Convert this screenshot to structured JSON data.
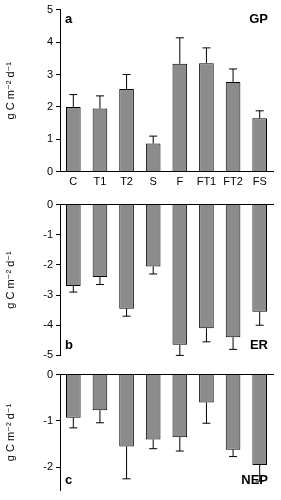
{
  "chart_data": [
    {
      "type": "bar",
      "title": "GP",
      "panel_label": "a",
      "y_label": "g C m⁻² d⁻¹",
      "categories": [
        "C",
        "T1",
        "T2",
        "S",
        "F",
        "FT1",
        "FT2",
        "FS"
      ],
      "values": [
        2.0,
        1.95,
        2.55,
        0.87,
        3.33,
        3.35,
        2.77,
        1.65
      ],
      "errors": [
        0.38,
        0.39,
        0.45,
        0.23,
        0.8,
        0.47,
        0.4,
        0.23
      ],
      "color": "#8c8c8c",
      "ylim": [
        0,
        5
      ],
      "yticks": [
        0,
        1,
        2,
        3,
        4,
        5
      ],
      "grid": false
    },
    {
      "type": "bar",
      "title": "ER",
      "panel_label": "b",
      "y_label": "g C m⁻² d⁻¹",
      "categories": [
        "C",
        "T1",
        "T2",
        "S",
        "F",
        "FT1",
        "FT2",
        "FS"
      ],
      "values": [
        -2.7,
        -2.4,
        -3.45,
        -2.05,
        -4.65,
        -4.1,
        -4.4,
        -3.55
      ],
      "errors": [
        0.2,
        0.25,
        0.25,
        0.25,
        0.35,
        0.45,
        0.4,
        0.45
      ],
      "color": "#8c8c8c",
      "ylim": [
        -5,
        0
      ],
      "yticks": [
        -5,
        -4,
        -3,
        -2,
        -1,
        0
      ],
      "grid": false,
      "tick_labels": "y"
    },
    {
      "type": "bar",
      "title": "NEP",
      "panel_label": "c",
      "y_label": "g C m⁻² d⁻¹",
      "categories": [
        "C",
        "T1",
        "T2",
        "S",
        "F",
        "FT1",
        "FT2",
        "FS"
      ],
      "values": [
        -0.93,
        -0.77,
        -1.55,
        -1.4,
        -1.35,
        -0.6,
        -1.62,
        -1.95
      ],
      "errors": [
        0.22,
        0.27,
        0.7,
        0.2,
        0.3,
        0.45,
        0.15,
        0.35
      ],
      "color": "#8c8c8c",
      "ylim": [
        -2.5,
        0
      ],
      "yticks": [
        -2,
        -1,
        0
      ],
      "grid": false,
      "tick_labels": "y"
    }
  ]
}
